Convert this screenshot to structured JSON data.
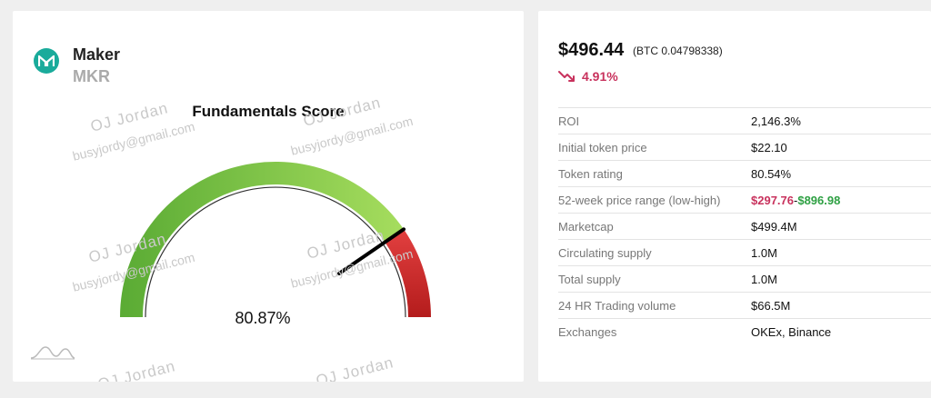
{
  "coin": {
    "name": "Maker",
    "symbol": "MKR",
    "logo_color": "#1aab9b"
  },
  "gauge": {
    "title": "Fundamentals Score",
    "value_label": "80.87%",
    "value": 80.87,
    "colors": {
      "green": "#5db33a",
      "light_green": "#9ed95a",
      "red": "#cc2a2a"
    },
    "needle_color": "#000000"
  },
  "watermarks": {
    "name": "OJ Jordan",
    "email": "busyjordy@gmail.com"
  },
  "price": {
    "usd": "$496.44",
    "btc": "(BTC 0.04798338)",
    "change": "4.91%",
    "change_direction": "down",
    "change_color": "#c8325d"
  },
  "stats": [
    {
      "label": "ROI",
      "value": "2,146.3%"
    },
    {
      "label": "Initial token price",
      "value": "$22.10"
    },
    {
      "label": "Token rating",
      "value": "80.54%"
    },
    {
      "label": "52-week price range (low-high)",
      "low": "$297.76",
      "sep": "-",
      "high": "$896.98"
    },
    {
      "label": "Marketcap",
      "value": "$499.4M"
    },
    {
      "label": "Circulating supply",
      "value": "1.0M"
    },
    {
      "label": "Total supply",
      "value": "1.0M"
    },
    {
      "label": "24 HR Trading volume",
      "value": "$66.5M"
    },
    {
      "label": "Exchanges",
      "value": "OKEx, Binance"
    }
  ]
}
